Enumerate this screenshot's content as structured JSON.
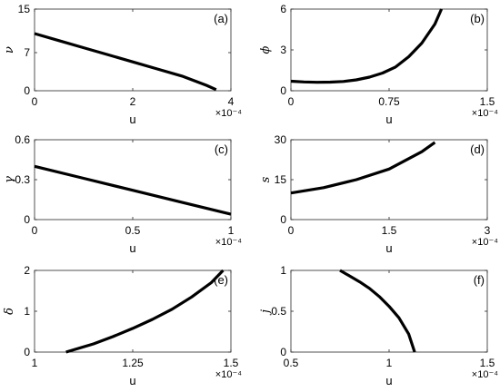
{
  "chart_data": [
    {
      "type": "line",
      "panel": "(a)",
      "xlabel": "u",
      "ylabel": "ν",
      "x_exponent": "×10⁻⁴",
      "xlim": [
        0,
        4
      ],
      "ylim": [
        0,
        15
      ],
      "xticks": [
        0,
        2,
        4
      ],
      "yticks": [
        0,
        7,
        15
      ],
      "series": [
        {
          "x": [
            0,
            0.5,
            1,
            1.5,
            2,
            2.5,
            3,
            3.5,
            3.7
          ],
          "y": [
            10.5,
            9.2,
            7.9,
            6.6,
            5.3,
            4.0,
            2.7,
            1.0,
            0.2
          ]
        }
      ]
    },
    {
      "type": "line",
      "panel": "(b)",
      "xlabel": "u",
      "ylabel": "ϕ",
      "x_exponent": "×10⁻⁴",
      "xlim": [
        0,
        1.5
      ],
      "ylim": [
        0,
        6
      ],
      "xticks": [
        0,
        0.75,
        1.5
      ],
      "yticks": [
        0,
        3,
        6
      ],
      "series": [
        {
          "x": [
            0,
            0.1,
            0.2,
            0.3,
            0.4,
            0.5,
            0.6,
            0.7,
            0.8,
            0.9,
            1.0,
            1.1,
            1.15
          ],
          "y": [
            0.7,
            0.65,
            0.62,
            0.63,
            0.68,
            0.8,
            1.0,
            1.3,
            1.75,
            2.5,
            3.5,
            4.9,
            6.0
          ]
        }
      ]
    },
    {
      "type": "line",
      "panel": "(c)",
      "xlabel": "u",
      "ylabel": "γ",
      "x_exponent": "×10⁻⁴",
      "xlim": [
        0,
        1
      ],
      "ylim": [
        0,
        0.6
      ],
      "xticks": [
        0,
        0.5,
        1
      ],
      "yticks": [
        0,
        0.3,
        0.6
      ],
      "series": [
        {
          "x": [
            0,
            0.25,
            0.5,
            0.75,
            1.0
          ],
          "y": [
            0.4,
            0.31,
            0.22,
            0.13,
            0.04
          ]
        }
      ]
    },
    {
      "type": "line",
      "panel": "(d)",
      "xlabel": "u",
      "ylabel": "s",
      "x_exponent": "×10⁻⁴",
      "xlim": [
        0,
        3
      ],
      "ylim": [
        0,
        30
      ],
      "xticks": [
        0,
        1.5,
        3
      ],
      "yticks": [
        0,
        15,
        30
      ],
      "series": [
        {
          "x": [
            0,
            0.5,
            1.0,
            1.5,
            2.0,
            2.2
          ],
          "y": [
            10,
            12,
            15,
            19,
            25.5,
            29
          ]
        }
      ]
    },
    {
      "type": "line",
      "panel": "(e)",
      "xlabel": "u",
      "ylabel": "δ",
      "x_exponent": "×10⁻⁴",
      "xlim": [
        1,
        1.5
      ],
      "ylim": [
        0,
        2
      ],
      "xticks": [
        1,
        1.25,
        1.5
      ],
      "yticks": [
        0,
        1,
        2
      ],
      "series": [
        {
          "x": [
            1.08,
            1.15,
            1.2,
            1.25,
            1.3,
            1.35,
            1.4,
            1.45,
            1.48
          ],
          "y": [
            0.0,
            0.2,
            0.38,
            0.58,
            0.8,
            1.05,
            1.35,
            1.7,
            2.0
          ]
        }
      ]
    },
    {
      "type": "line",
      "panel": "(f)",
      "xlabel": "u",
      "ylabel": "j",
      "x_exponent": "×10⁻⁴",
      "xlim": [
        0.5,
        1.5
      ],
      "ylim": [
        0,
        1
      ],
      "xticks": [
        0.5,
        1,
        1.5
      ],
      "yticks": [
        0,
        0.5,
        1
      ],
      "series": [
        {
          "x": [
            0.75,
            0.8,
            0.85,
            0.9,
            0.95,
            1.0,
            1.05,
            1.1,
            1.13
          ],
          "y": [
            1.0,
            0.93,
            0.86,
            0.78,
            0.68,
            0.56,
            0.42,
            0.22,
            0.0
          ]
        }
      ]
    }
  ]
}
